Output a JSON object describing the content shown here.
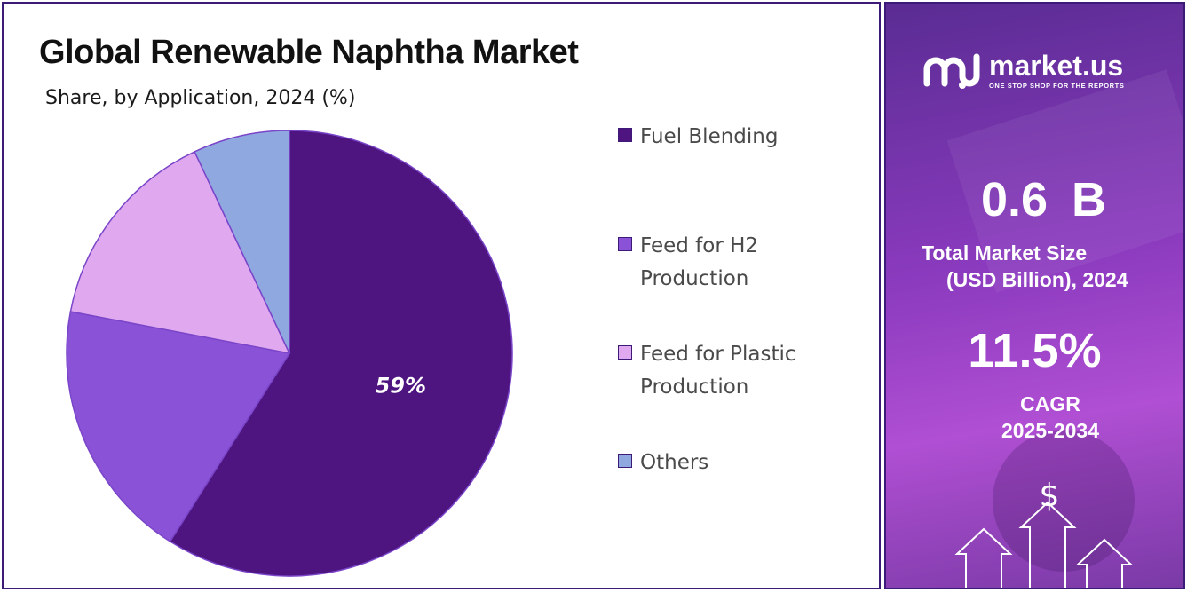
{
  "title": "Global Renewable Naphtha Market",
  "subtitle": "Share, by Application, 2024 (%)",
  "chart_data": {
    "type": "pie",
    "categories": [
      "Fuel Blending",
      "Feed for H2 Production",
      "Feed for Plastic Production",
      "Others"
    ],
    "values": [
      59,
      19,
      15,
      7
    ],
    "data_labels": [
      "59%",
      "",
      "",
      ""
    ],
    "colors": [
      "#4e1581",
      "#8a52d6",
      "#e0a9ef",
      "#8fa8df"
    ],
    "legend_position": "right"
  },
  "legend": [
    {
      "label": "Fuel Blending",
      "color": "#4e1581"
    },
    {
      "label": "Feed for H2 Production",
      "color": "#8a52d6"
    },
    {
      "label": "Feed for Plastic Production",
      "color": "#e0a9ef"
    },
    {
      "label": "Others",
      "color": "#8fa8df"
    }
  ],
  "brand": {
    "name": "market.us",
    "tagline": "ONE STOP SHOP FOR THE REPORTS"
  },
  "stats": {
    "market_size_value": "0.6 B",
    "market_size_label_line1": "Total Market Size",
    "market_size_label_line2": "(USD Billion), 2024",
    "cagr_value": "11.5%",
    "cagr_label_line1": "CAGR",
    "cagr_label_line2": "2025-2034"
  },
  "colors": {
    "border": "#3b1a78",
    "panel_accent": "#8c3bbf"
  },
  "icons": [
    "market-us-logo-icon",
    "dollar-icon",
    "up-arrow-icon"
  ]
}
